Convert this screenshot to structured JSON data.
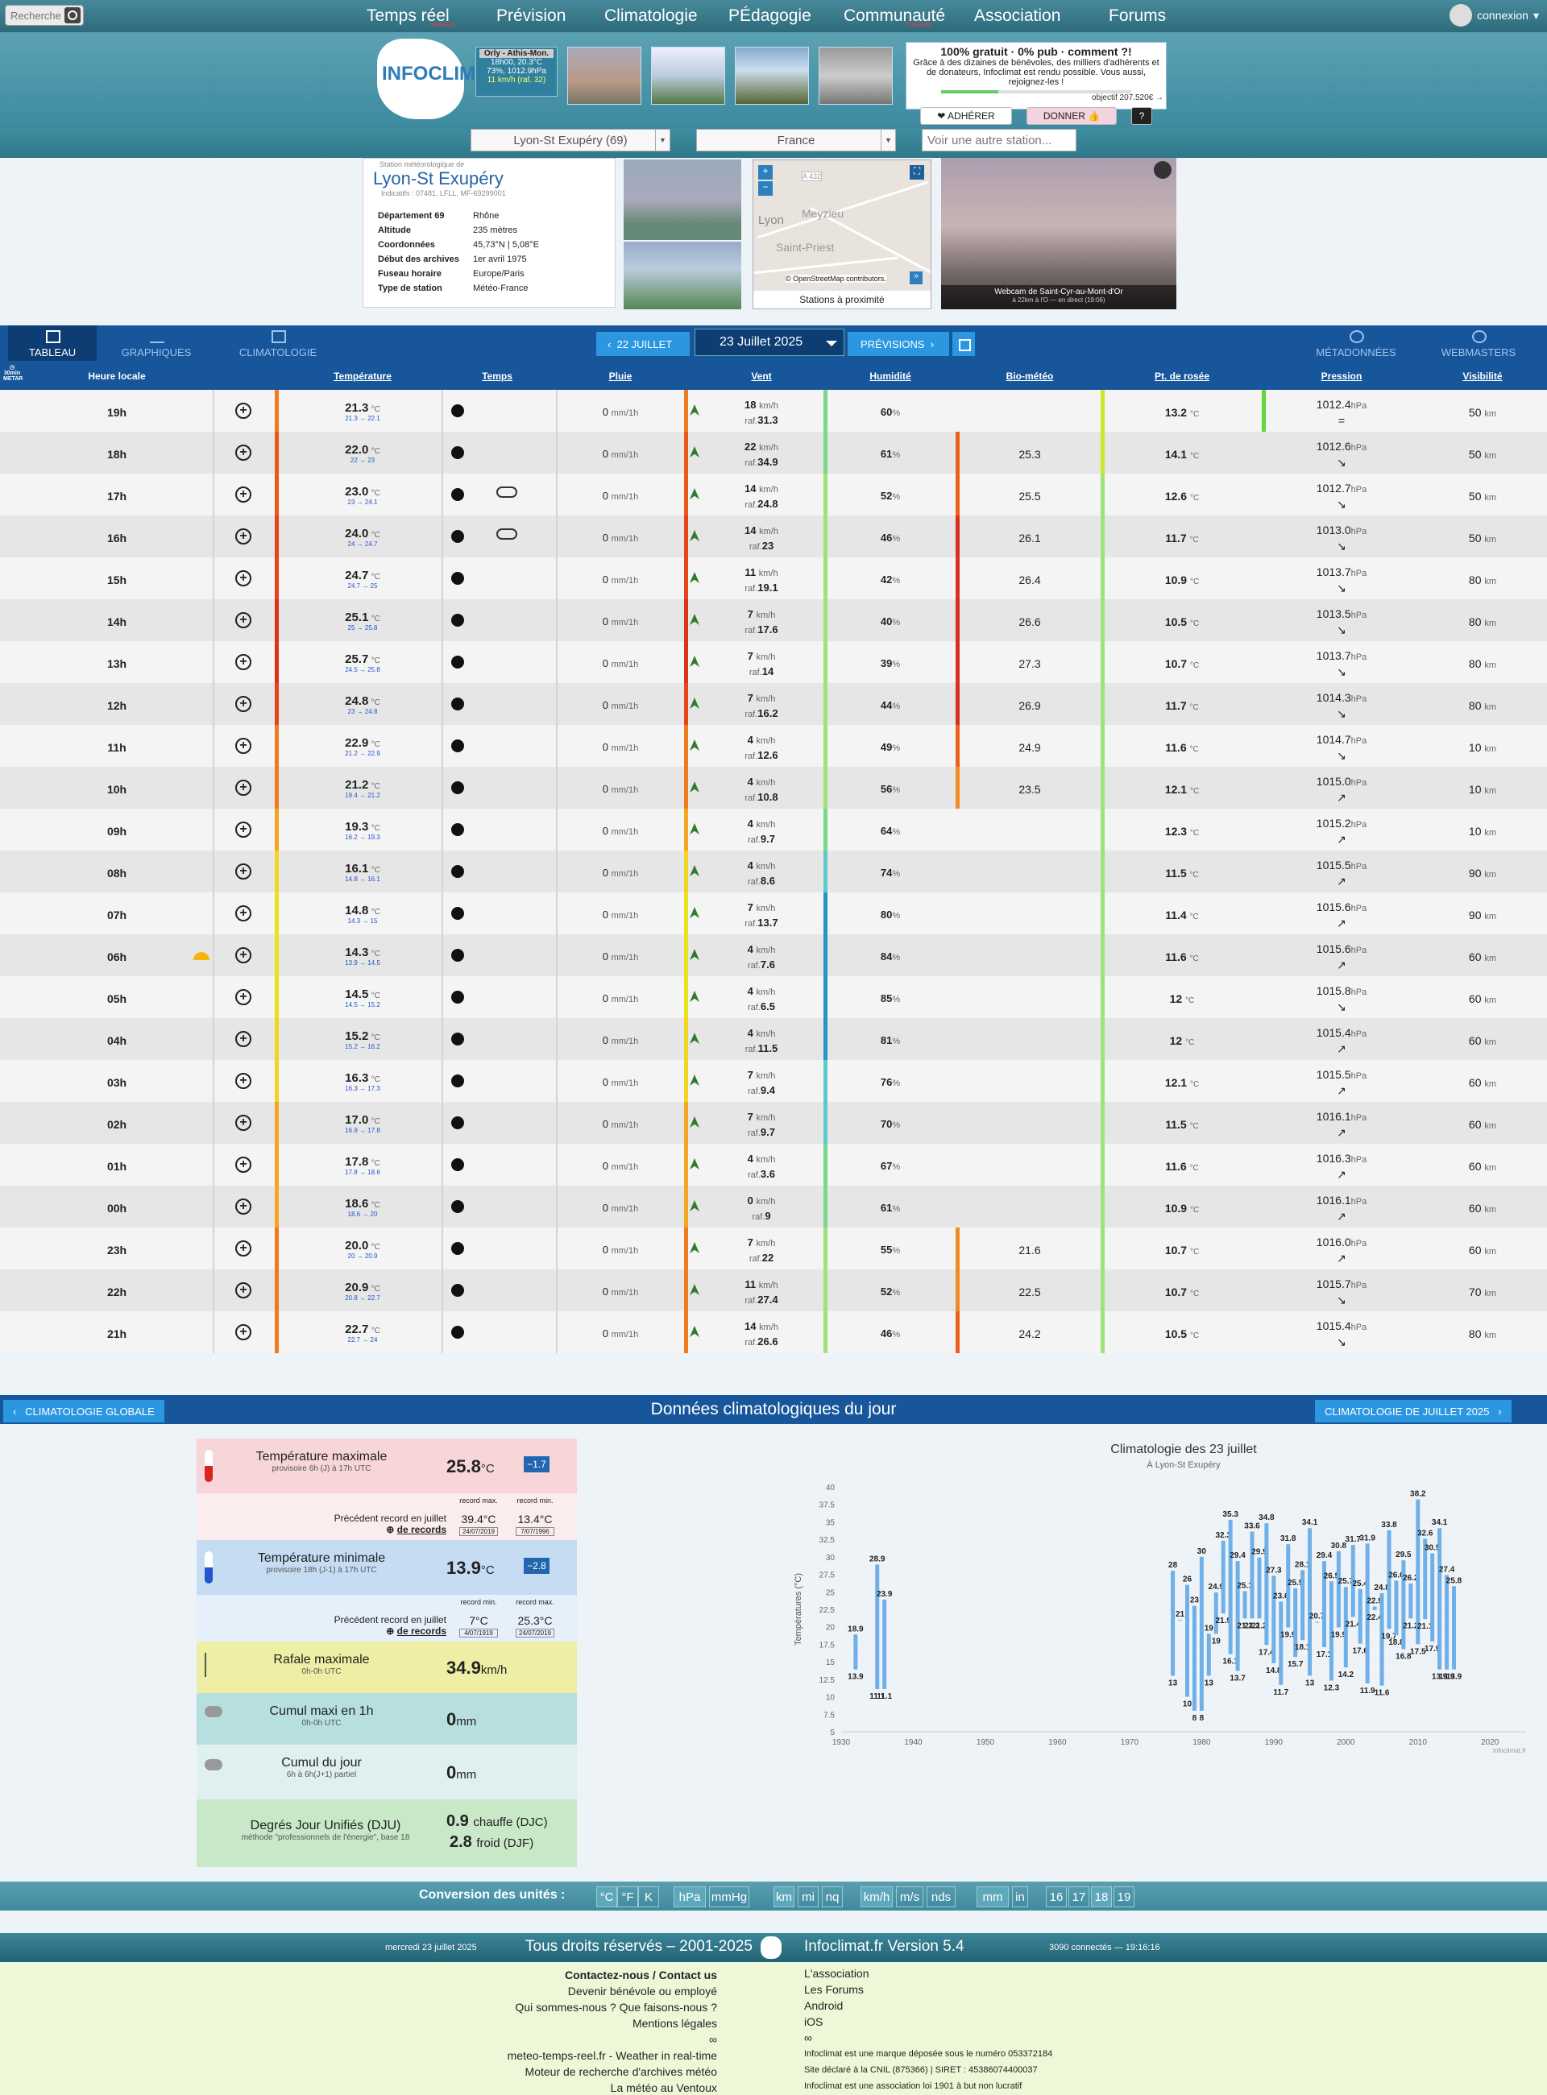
{
  "topnav": {
    "search_placeholder": "Recherche",
    "items": [
      "Temps réel",
      "Prévision",
      "Climatologie",
      "PÉdagogie",
      "Communauté",
      "Association",
      "Forums"
    ],
    "tags": [
      "nouveau",
      "",
      "",
      "",
      "nouveau",
      "",
      ""
    ],
    "login": "connexion"
  },
  "banner": {
    "logo": "INFOCLIMAT",
    "orly_title": "Orly - Athis-Mon.",
    "orly_line1": "18h00, 20.3°C",
    "orly_line2": "73%, 1012.9hPa",
    "orly_line3": "11 km/h (raf. 32)",
    "promo_title": "100% gratuit · 0% pub · comment ?!",
    "promo_text": "Grâce à des dizaines de bénévoles, des milliers d'adhérents et de donateurs, Infoclimat est rendu possible. Vous aussi, rejoignez-les !",
    "promo_objective": "objectif 207.520€ →",
    "adherer": "❤ ADHÉRER",
    "donner": "DONNER 👍",
    "help": "?"
  },
  "selectors": {
    "station": "Lyon-St Exupéry (69)",
    "country": "France",
    "other_placeholder": "Voir une autre station..."
  },
  "station": {
    "small": "Station météorologique de",
    "name": "Lyon-St Exupéry",
    "indicatifs": "Indicatifs : 07481, LFLL, MF-69299001",
    "info": [
      [
        "Département 69",
        "Rhône"
      ],
      [
        "Altitude",
        "235 mètres"
      ],
      [
        "Coordonnées",
        "45,73°N | 5,08°E"
      ],
      [
        "Début des archives",
        "1er avril 1975"
      ],
      [
        "Fuseau horaire",
        "Europe/Paris"
      ],
      [
        "Type de station",
        "Météo-France"
      ]
    ]
  },
  "map": {
    "lyon": "Lyon",
    "meyzieu": "Meyzieu",
    "stpriest": "Saint-Priest",
    "road": "A 432",
    "attribution": "© OpenStreetMap contributors.",
    "proximite": "Stations à proximité"
  },
  "webcam": {
    "caption": "Webcam de Saint-Cyr-au-Mont-d'Or",
    "sub": "à 22km à l'O — en direct (19:06)"
  },
  "tabs": {
    "tableau": "TABLEAU",
    "graphiques": "GRAPHIQUES",
    "climatologie": "CLIMATOLOGIE",
    "metadonnees": "MÉTADONNÉES",
    "webmasters": "WEBMASTERS"
  },
  "datenav": {
    "prev": "22 JUILLET",
    "date": "23 Juillet 2025",
    "next": "PRÉVISIONS"
  },
  "columns": {
    "heure": "Heure locale",
    "temperature": "Température",
    "temps": "Temps",
    "pluie": "Pluie",
    "vent": "Vent",
    "humidite": "Humidité",
    "biometeo": "Bio-météo",
    "rosee": "Pt. de rosée",
    "pression": "Pression",
    "visibilite": "Visibilité",
    "metar": "30min METAR"
  },
  "units": {
    "c": "°C",
    "mm": "mm/1h",
    "kmh": "km/h",
    "raf": "raf.",
    "pct": "%",
    "hpa": "hPa",
    "km": "km"
  },
  "rows": [
    [
      "19h",
      "21.3",
      "21.3 → 22.1",
      "0",
      "18",
      "31.3",
      "60",
      "",
      "13.2",
      "1012.4",
      "=",
      "50"
    ],
    [
      "18h",
      "22.0",
      "22 → 23",
      "0",
      "22",
      "34.9",
      "61",
      "25.3",
      "14.1",
      "1012.6",
      "↘",
      "50"
    ],
    [
      "17h",
      "23.0",
      "23 → 24.1",
      "0",
      "14",
      "24.8",
      "52",
      "25.5",
      "12.6",
      "1012.7",
      "↘",
      "50"
    ],
    [
      "16h",
      "24.0",
      "24 → 24.7",
      "0",
      "14",
      "23",
      "46",
      "26.1",
      "11.7",
      "1013.0",
      "↘",
      "50"
    ],
    [
      "15h",
      "24.7",
      "24.7 → 25",
      "0",
      "11",
      "19.1",
      "42",
      "26.4",
      "10.9",
      "1013.7",
      "↘",
      "80"
    ],
    [
      "14h",
      "25.1",
      "25 → 25.8",
      "0",
      "7",
      "17.6",
      "40",
      "26.6",
      "10.5",
      "1013.5",
      "↘",
      "80"
    ],
    [
      "13h",
      "25.7",
      "24.5 → 25.8",
      "0",
      "7",
      "14",
      "39",
      "27.3",
      "10.7",
      "1013.7",
      "↘",
      "80"
    ],
    [
      "12h",
      "24.8",
      "23 → 24.8",
      "0",
      "7",
      "16.2",
      "44",
      "26.9",
      "11.7",
      "1014.3",
      "↘",
      "80"
    ],
    [
      "11h",
      "22.9",
      "21.2 → 22.9",
      "0",
      "4",
      "12.6",
      "49",
      "24.9",
      "11.6",
      "1014.7",
      "↘",
      "10"
    ],
    [
      "10h",
      "21.2",
      "19.4 → 21.2",
      "0",
      "4",
      "10.8",
      "56",
      "23.5",
      "12.1",
      "1015.0",
      "↗",
      "10"
    ],
    [
      "09h",
      "19.3",
      "16.2 → 19.3",
      "0",
      "4",
      "9.7",
      "64",
      "",
      "12.3",
      "1015.2",
      "↗",
      "10"
    ],
    [
      "08h",
      "16.1",
      "14.8 → 16.1",
      "0",
      "4",
      "8.6",
      "74",
      "",
      "11.5",
      "1015.5",
      "↗",
      "90"
    ],
    [
      "07h",
      "14.8",
      "14.3 → 15",
      "0",
      "7",
      "13.7",
      "80",
      "",
      "11.4",
      "1015.6",
      "↗",
      "90"
    ],
    [
      "06h",
      "14.3",
      "13.9 → 14.5",
      "0",
      "4",
      "7.6",
      "84",
      "",
      "11.6",
      "1015.6",
      "↗",
      "60"
    ],
    [
      "05h",
      "14.5",
      "14.5 → 15.2",
      "0",
      "4",
      "6.5",
      "85",
      "",
      "12",
      "1015.8",
      "↘",
      "60"
    ],
    [
      "04h",
      "15.2",
      "15.2 → 16.2",
      "0",
      "4",
      "11.5",
      "81",
      "",
      "12",
      "1015.4",
      "↗",
      "60"
    ],
    [
      "03h",
      "16.3",
      "16.3 → 17.3",
      "0",
      "7",
      "9.4",
      "76",
      "",
      "12.1",
      "1015.5",
      "↗",
      "60"
    ],
    [
      "02h",
      "17.0",
      "16.9 → 17.8",
      "0",
      "7",
      "9.7",
      "70",
      "",
      "11.5",
      "1016.1",
      "↗",
      "60"
    ],
    [
      "01h",
      "17.8",
      "17.8 → 18.6",
      "0",
      "4",
      "3.6",
      "67",
      "",
      "11.6",
      "1016.3",
      "↗",
      "60"
    ],
    [
      "00h",
      "18.6",
      "18.6 → 20",
      "0",
      "0",
      "9",
      "61",
      "",
      "10.9",
      "1016.1",
      "↗",
      "60"
    ],
    [
      "23h",
      "20.0",
      "20 → 20.9",
      "0",
      "7",
      "22",
      "55",
      "21.6",
      "10.7",
      "1016.0",
      "↗",
      "60"
    ],
    [
      "22h",
      "20.9",
      "20.8 → 22.7",
      "0",
      "11",
      "27.4",
      "52",
      "22.5",
      "10.7",
      "1015.7",
      "↘",
      "70"
    ],
    [
      "21h",
      "22.7",
      "22.7 → 24",
      "0",
      "14",
      "26.6",
      "46",
      "24.2",
      "10.5",
      "1015.4",
      "↘",
      "80"
    ]
  ],
  "colors": {
    "tstrip": [
      "#f07a1e",
      "#e8591a",
      "#e8591a",
      "#e34619",
      "#e34619",
      "#dd3318",
      "#dd3318",
      "#e34619",
      "#f07a1e",
      "#f07a1e",
      "#f5a51f",
      "#f1d51f",
      "#e8e31f",
      "#e8e31f",
      "#e8e31f",
      "#f1d51f",
      "#f1d51f",
      "#f5a51f",
      "#f5a51f",
      "#f5a51f",
      "#f07a1e",
      "#f07a1e",
      "#f07a1e"
    ]
  },
  "clim": {
    "left_btn": "CLIMATOLOGIE GLOBALE",
    "title": "Données climatologiques du jour",
    "right_btn": "CLIMATOLOGIE DE JUILLET 2025",
    "tmax_label": "Température maximale",
    "tmax_sub": "provisoire 6h (J) à 17h UTC",
    "tmax_val": "25.8",
    "tmax_delta": "−1.7",
    "rec1_lbl": "Précédent record en juillet",
    "rec_more": "de records",
    "rec1_h1": "record max.",
    "rec1_v1": "39.4°C",
    "rec1_d1": "24/07/2019",
    "rec1_h2": "record min.",
    "rec1_v2": "13.4°C",
    "rec1_d2": "7/07/1996",
    "tmin_label": "Température minimale",
    "tmin_sub": "provisoire 18h (J-1) à 17h UTC",
    "tmin_val": "13.9",
    "tmin_delta": "−2.8",
    "rec2_h1": "record min.",
    "rec2_v1": "7°C",
    "rec2_d1": "4/07/1919",
    "rec2_h2": "record max.",
    "rec2_v2": "25.3°C",
    "rec2_d2": "24/07/2019",
    "raf_label": "Rafale maximale",
    "raf_sub": "0h-0h UTC",
    "raf_val": "34.9",
    "raf_unit": "km/h",
    "cumul1_label": "Cumul maxi en 1h",
    "cumul1_sub": "0h-0h UTC",
    "cumul1_val": "0",
    "mm": "mm",
    "cumul2_label": "Cumul du jour",
    "cumul2_sub": "6h à 6h(J+1) partiel",
    "cumul2_val": "0",
    "dju_label": "Degrés Jour Unifiés (DJU)",
    "dju_sub": "méthode \"professionnels de l'énergie\", base 18",
    "djc": "0.9",
    "djc_lbl": "chauffe (DJC)",
    "djf": "2.8",
    "djf_lbl": "froid (DJF)"
  },
  "chart_data": {
    "type": "bar",
    "title": "Climatologie des 23 juillet",
    "subtitle": "À Lyon-St Exupéry",
    "ylabel": "Températures (°C)",
    "ylim": [
      5,
      40
    ],
    "xlim": [
      1930,
      2025
    ],
    "xticks": [
      1930,
      1940,
      1950,
      1960,
      1970,
      1980,
      1990,
      2000,
      2010,
      2020
    ],
    "yticks": [
      5,
      7.5,
      10,
      12.5,
      15,
      17.5,
      20,
      22.5,
      25,
      27.5,
      30,
      32.5,
      35,
      37.5,
      40
    ],
    "credit": "infoclimat.fr",
    "bars": [
      [
        1932,
        13.9,
        18.9
      ],
      [
        1935,
        11.1,
        28.9
      ],
      [
        1936,
        11.1,
        23.9
      ],
      [
        1976,
        13,
        28
      ],
      [
        1977,
        21,
        21
      ],
      [
        1978,
        10,
        26
      ],
      [
        1979,
        8,
        23
      ],
      [
        1980,
        8,
        30
      ],
      [
        1981,
        13,
        19
      ],
      [
        1982,
        19,
        24.9
      ],
      [
        1983,
        21.9,
        32.3
      ],
      [
        1984,
        16.1,
        35.3
      ],
      [
        1985,
        13.7,
        29.4
      ],
      [
        1986,
        21.2,
        25.1
      ],
      [
        1987,
        21.2,
        33.6
      ],
      [
        1988,
        21.2,
        29.9
      ],
      [
        1989,
        17.4,
        34.8
      ],
      [
        1990,
        14.8,
        27.3
      ],
      [
        1991,
        11.7,
        23.6
      ],
      [
        1992,
        19.9,
        31.8
      ],
      [
        1993,
        15.7,
        25.5
      ],
      [
        1994,
        18.1,
        28.1
      ],
      [
        1995,
        13,
        34.1
      ],
      [
        1996,
        20.7,
        20.7
      ],
      [
        1997,
        17.1,
        29.4
      ],
      [
        1998,
        12.3,
        26.5
      ],
      [
        1999,
        19.9,
        30.8
      ],
      [
        2000,
        14.2,
        25.7
      ],
      [
        2001,
        21.4,
        31.7
      ],
      [
        2002,
        17.6,
        25.4
      ],
      [
        2003,
        11.9,
        31.9
      ],
      [
        2004,
        22.4,
        22.9
      ],
      [
        2005,
        11.6,
        24.8
      ],
      [
        2006,
        19.7,
        33.8
      ],
      [
        2007,
        18.8,
        26.6
      ],
      [
        2008,
        16.8,
        29.5
      ],
      [
        2009,
        21.2,
        26.2
      ],
      [
        2010,
        17.5,
        38.2
      ],
      [
        2011,
        21.1,
        32.6
      ],
      [
        2012,
        17.9,
        30.5
      ],
      [
        2013,
        13.9,
        34.1
      ],
      [
        2014,
        13.9,
        27.4
      ],
      [
        2015,
        13.9,
        25.8
      ]
    ]
  },
  "conv": {
    "label": "Conversion des unités :",
    "units": [
      "°C",
      "°F",
      "K",
      "hPa",
      "mmHg",
      "km",
      "mi",
      "nq",
      "km/h",
      "m/s",
      "nds",
      "mm",
      "in",
      "16",
      "17",
      "18",
      "19"
    ]
  },
  "footer": {
    "date": "mercredi 23 juillet 2025",
    "rights": "Tous droits réservés – 2001-2025",
    "version": "Infoclimat.fr Version 5.4",
    "connected": "3090 connectés — 19:16:16",
    "left": [
      "Contactez-nous / Contact us",
      "Devenir bénévole ou employé",
      "Qui sommes-nous ? Que faisons-nous ?",
      "Mentions légales",
      "∞",
      "meteo-temps-reel.fr - Weather in real-time",
      "Moteur de recherche d'archives météo",
      "La météo au Ventoux"
    ],
    "right": [
      "L'association",
      "Les Forums",
      "Android",
      "iOS",
      "∞",
      "Infoclimat est une marque déposée sous le numéro 053372184",
      "Site déclaré à la CNIL (875366) | SIRET : 45386074400037",
      "Infoclimat est une association loi 1901 à but non lucratif"
    ]
  }
}
